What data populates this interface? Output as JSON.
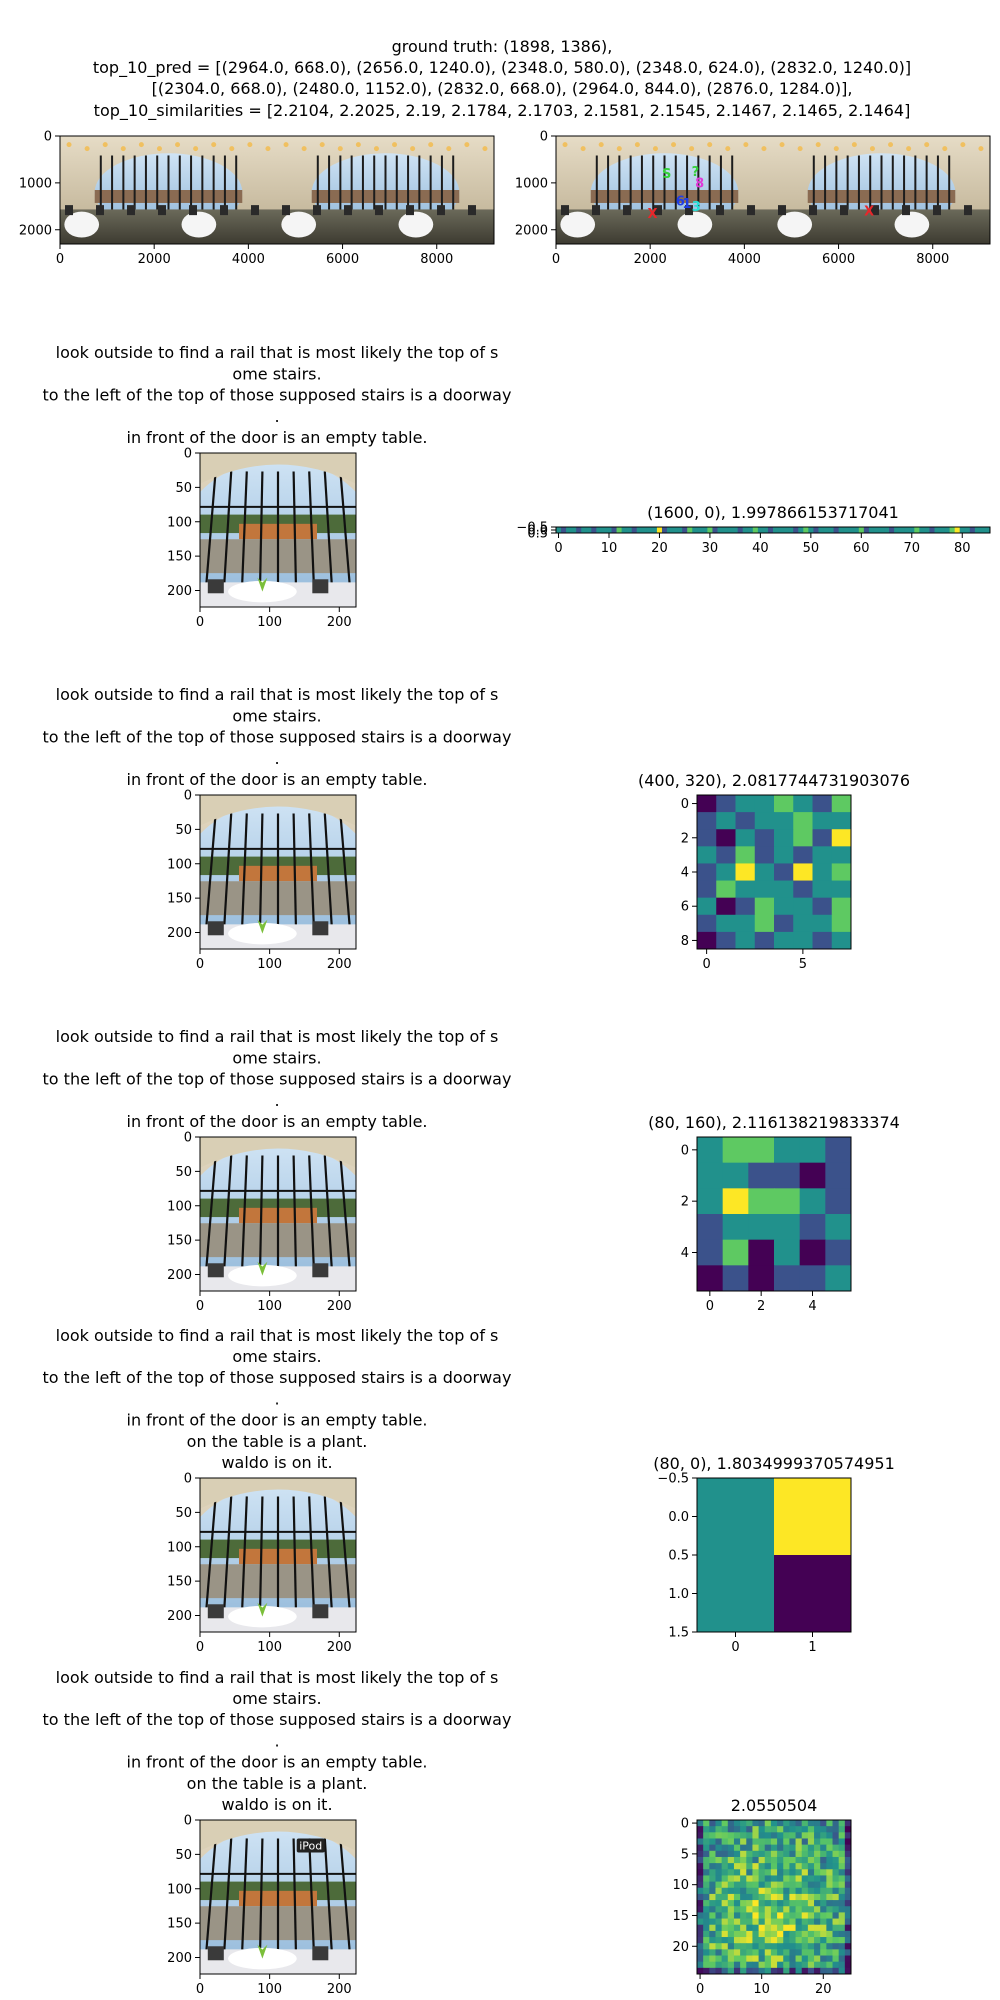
{
  "header": {
    "lines": [
      "ground truth: (1898, 1386),",
      "top_10_pred = [(2964.0, 668.0), (2656.0, 1240.0), (2348.0, 580.0), (2348.0, 624.0), (2832.0, 1240.0)]",
      "[(2304.0, 668.0), (2480.0, 1152.0), (2832.0, 668.0), (2964.0, 844.0), (2876.0, 1284.0)],",
      "top_10_similarities = [2.2104, 2.2025, 2.19, 2.1784, 2.1703, 2.1581, 2.1545, 2.1467, 2.1465, 2.1464]"
    ]
  },
  "colors": {
    "viridis": [
      "#440154",
      "#3b528b",
      "#21918c",
      "#5ec962",
      "#fde725"
    ],
    "marker_red": "#e8262a",
    "marker_green": "#35d03a",
    "marker_blue": "#1f3ee6",
    "marker_cyan": "#28e0d8",
    "marker_magenta": "#e03ad8"
  },
  "chart_data": [
    {
      "type": "image",
      "id": "pano-left",
      "xticks": [
        "0",
        "2000",
        "4000",
        "6000",
        "8000"
      ],
      "yticks": [
        "0",
        "1000",
        "2000"
      ],
      "xlim": [
        0,
        9216
      ],
      "ylim": [
        2304,
        0
      ]
    },
    {
      "type": "image",
      "id": "pano-right",
      "xticks": [
        "0",
        "2000",
        "4000",
        "6000",
        "8000"
      ],
      "yticks": [
        "0",
        "1000",
        "2000"
      ],
      "xlim": [
        0,
        9216
      ],
      "ylim": [
        2304,
        0
      ],
      "markers": [
        {
          "label": "S",
          "x": 2350,
          "y": 900,
          "color": "marker_green"
        },
        {
          "label": "?",
          "x": 2960,
          "y": 850,
          "color": "marker_green"
        },
        {
          "label": "8",
          "x": 3050,
          "y": 1100,
          "color": "marker_magenta"
        },
        {
          "label": "6",
          "x": 2640,
          "y": 1480,
          "color": "marker_blue"
        },
        {
          "label": "1",
          "x": 2780,
          "y": 1540,
          "color": "marker_blue"
        },
        {
          "label": "3",
          "x": 2980,
          "y": 1600,
          "color": "marker_cyan"
        },
        {
          "label": "X",
          "x": 2050,
          "y": 1750,
          "color": "marker_red"
        },
        {
          "label": "X",
          "x": 6650,
          "y": 1700,
          "color": "marker_red"
        }
      ]
    },
    {
      "type": "image",
      "id": "crop-1",
      "title_lines": [
        "look outside to find a rail that is most likely the top of s",
        "ome stairs.",
        "to the left of the top of those supposed stairs is a doorway",
        ".",
        "in front of the door is an empty table."
      ],
      "xticks": [
        "0",
        "100",
        "200"
      ],
      "yticks": [
        "0",
        "50",
        "100",
        "150",
        "200"
      ],
      "xlim": [
        0,
        224
      ],
      "ylim": [
        224,
        0
      ]
    },
    {
      "type": "heatmap",
      "id": "heat-1",
      "title": "(1600, 0), 1.997866153717041",
      "rows": 1,
      "cols": 86,
      "xticks": [
        "0",
        "10",
        "20",
        "30",
        "40",
        "50",
        "60",
        "70",
        "80"
      ],
      "yticks": [
        "−0.5",
        "0.0",
        "0.5"
      ],
      "values": [
        [
          2,
          1,
          2,
          2,
          1,
          2,
          2,
          1,
          2,
          2,
          2,
          1,
          3,
          2,
          2,
          1,
          2,
          2,
          2,
          2,
          4,
          1,
          2,
          2,
          2,
          1,
          3,
          2,
          2,
          2,
          3,
          1,
          2,
          2,
          2,
          2,
          1,
          2,
          2,
          3,
          2,
          2,
          1,
          2,
          2,
          2,
          2,
          1,
          2,
          3,
          2,
          1,
          2,
          2,
          2,
          1,
          2,
          2,
          2,
          2,
          3,
          1,
          2,
          2,
          2,
          2,
          1,
          2,
          2,
          2,
          2,
          3,
          2,
          2,
          1,
          2,
          2,
          2,
          3,
          4,
          2,
          2,
          1,
          2,
          2,
          2
        ]
      ]
    },
    {
      "type": "image",
      "id": "crop-2",
      "title_lines": [
        "look outside to find a rail that is most likely the top of s",
        "ome stairs.",
        "to the left of the top of those supposed stairs is a doorway",
        ".",
        "in front of the door is an empty table."
      ],
      "xticks": [
        "0",
        "100",
        "200"
      ],
      "yticks": [
        "0",
        "50",
        "100",
        "150",
        "200"
      ],
      "xlim": [
        0,
        224
      ],
      "ylim": [
        224,
        0
      ]
    },
    {
      "type": "heatmap",
      "id": "heat-2",
      "title": "(400, 320), 2.0817744731903076",
      "rows": 9,
      "cols": 8,
      "xticks": [
        "0",
        "5"
      ],
      "xtick_pos": [
        0,
        5
      ],
      "yticks": [
        "0",
        "2",
        "4",
        "6",
        "8"
      ],
      "ytick_pos": [
        0,
        2,
        4,
        6,
        8
      ],
      "values": [
        [
          0,
          1,
          2,
          2,
          3,
          2,
          1,
          3
        ],
        [
          1,
          2,
          1,
          2,
          2,
          3,
          2,
          2
        ],
        [
          1,
          0,
          2,
          1,
          2,
          3,
          1,
          4
        ],
        [
          2,
          1,
          3,
          1,
          2,
          1,
          2,
          2
        ],
        [
          1,
          2,
          4,
          2,
          1,
          4,
          2,
          3
        ],
        [
          1,
          3,
          2,
          2,
          2,
          1,
          2,
          2
        ],
        [
          2,
          0,
          1,
          3,
          2,
          2,
          1,
          3
        ],
        [
          1,
          2,
          2,
          3,
          1,
          2,
          2,
          3
        ],
        [
          0,
          1,
          2,
          1,
          2,
          2,
          1,
          2
        ]
      ]
    },
    {
      "type": "image",
      "id": "crop-3",
      "title_lines": [
        "look outside to find a rail that is most likely the top of s",
        "ome stairs.",
        "to the left of the top of those supposed stairs is a doorway",
        ".",
        "in front of the door is an empty table."
      ],
      "xticks": [
        "0",
        "100",
        "200"
      ],
      "yticks": [
        "0",
        "50",
        "100",
        "150",
        "200"
      ],
      "xlim": [
        0,
        224
      ],
      "ylim": [
        224,
        0
      ]
    },
    {
      "type": "heatmap",
      "id": "heat-3",
      "title": "(80, 160), 2.116138219833374",
      "rows": 6,
      "cols": 6,
      "xticks": [
        "0",
        "2",
        "4"
      ],
      "xtick_pos": [
        0,
        2,
        4
      ],
      "yticks": [
        "0",
        "2",
        "4"
      ],
      "ytick_pos": [
        0,
        2,
        4
      ],
      "values": [
        [
          2,
          3,
          3,
          2,
          2,
          1
        ],
        [
          2,
          2,
          1,
          1,
          0,
          1
        ],
        [
          2,
          4,
          3,
          3,
          2,
          1
        ],
        [
          1,
          2,
          2,
          2,
          1,
          2
        ],
        [
          1,
          3,
          0,
          2,
          0,
          1
        ],
        [
          0,
          1,
          0,
          1,
          1,
          2
        ]
      ]
    },
    {
      "type": "image",
      "id": "crop-4",
      "title_lines": [
        "look outside to find a rail that is most likely the top of s",
        "ome stairs.",
        "to the left of the top of those supposed stairs is a doorway",
        ".",
        "in front of the door is an empty table.",
        "on the table is a plant.",
        "waldo is on it."
      ],
      "xticks": [
        "0",
        "100",
        "200"
      ],
      "yticks": [
        "0",
        "50",
        "100",
        "150",
        "200"
      ],
      "xlim": [
        0,
        224
      ],
      "ylim": [
        224,
        0
      ]
    },
    {
      "type": "heatmap",
      "id": "heat-4",
      "title": "(80, 0), 1.8034999370574951",
      "rows": 2,
      "cols": 2,
      "xticks": [
        "0",
        "1"
      ],
      "xtick_pos": [
        0,
        1
      ],
      "yticks": [
        "−0.5",
        "0.0",
        "0.5",
        "1.0",
        "1.5"
      ],
      "ytick_pos": [
        -0.5,
        0,
        0.5,
        1.0,
        1.5
      ],
      "values": [
        [
          2,
          4
        ],
        [
          2,
          0
        ]
      ]
    },
    {
      "type": "image",
      "id": "crop-5",
      "title_lines": [
        "look outside to find a rail that is most likely the top of s",
        "ome stairs.",
        "to the left of the top of those supposed stairs is a doorway",
        ".",
        "in front of the door is an empty table.",
        "on the table is a plant.",
        "waldo is on it."
      ],
      "xticks": [
        "0",
        "100",
        "200"
      ],
      "yticks": [
        "0",
        "50",
        "100",
        "150",
        "200"
      ],
      "xlim": [
        0,
        224
      ],
      "ylim": [
        224,
        0
      ],
      "overlay_text": "iPod"
    },
    {
      "type": "heatmap",
      "id": "heat-5",
      "title": "2.0550504",
      "rows": 25,
      "cols": 25,
      "xticks": [
        "0",
        "10",
        "20"
      ],
      "xtick_pos": [
        0,
        10,
        20
      ],
      "yticks": [
        "0",
        "5",
        "10",
        "15",
        "20"
      ],
      "ytick_pos": [
        0,
        5,
        10,
        15,
        20
      ],
      "values_seed": 17
    }
  ]
}
